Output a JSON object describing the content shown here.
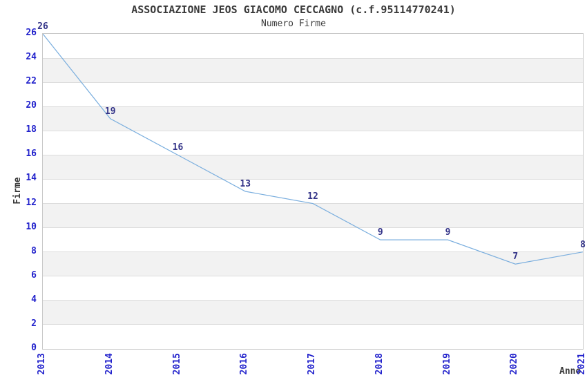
{
  "title": "ASSOCIAZIONE JEOS GIACOMO CECCAGNO (c.f.95114770241)",
  "subtitle": "Numero Firme",
  "chart_data": {
    "type": "line",
    "title": "ASSOCIAZIONE JEOS GIACOMO CECCAGNO (c.f.95114770241)",
    "subtitle": "Numero Firme",
    "xlabel": "Anno",
    "ylabel": "Firme",
    "categories": [
      "2013",
      "2014",
      "2015",
      "2016",
      "2017",
      "2018",
      "2019",
      "2020",
      "2021"
    ],
    "series": [
      {
        "name": "Numero Firme",
        "values": [
          26,
          19,
          16,
          13,
          12,
          9,
          9,
          7,
          8
        ]
      }
    ],
    "ylim": [
      0,
      26
    ],
    "y_ticks": [
      0,
      2,
      4,
      6,
      8,
      10,
      12,
      14,
      16,
      18,
      20,
      22,
      24,
      26
    ],
    "grid": "horizontal",
    "bands": "alternating-gray-every-2-units",
    "legend": "none",
    "data_labels": true,
    "markers": "none"
  },
  "colors": {
    "line": "#7aaede",
    "tick_label": "#2222cc",
    "data_label": "#333388",
    "title": "#3a3a3a",
    "band": "#f2f2f2",
    "gridline": "#dcdcdc",
    "border": "#c8c8c8",
    "background": "#ffffff"
  }
}
